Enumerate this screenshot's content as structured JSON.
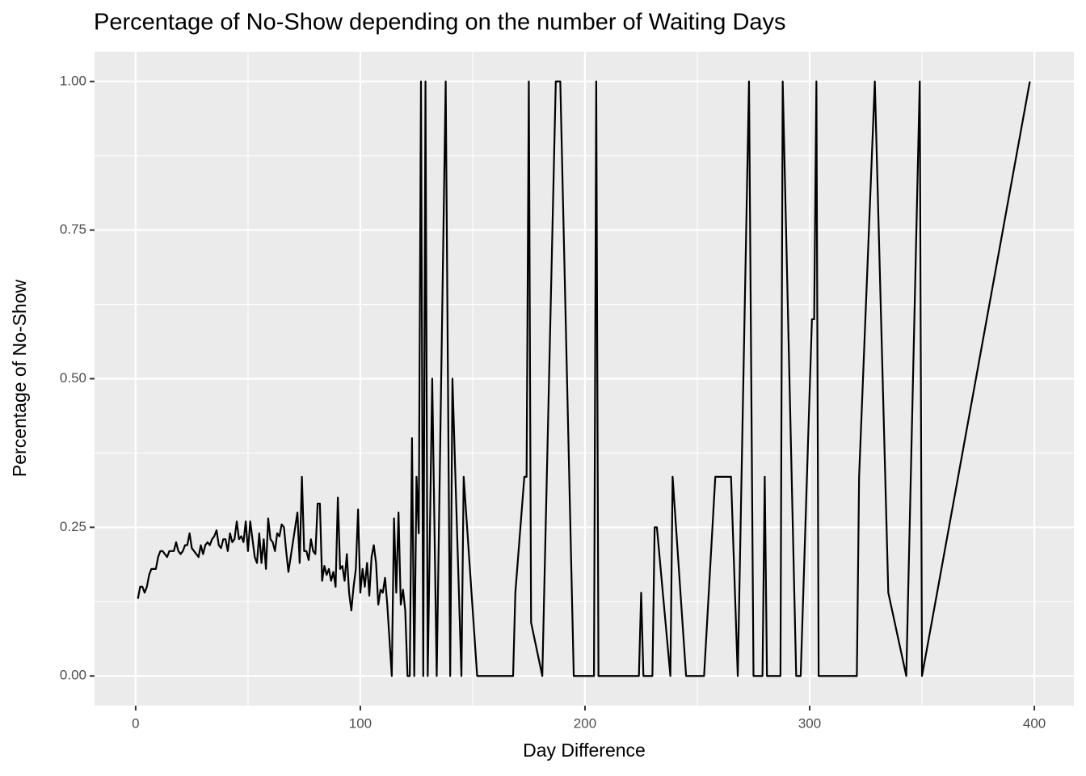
{
  "chart_data": {
    "type": "line",
    "title": "Percentage of No-Show depending on the number of Waiting Days",
    "x_label": "Day Difference",
    "y_label": "Percentage of No-Show",
    "x": [
      1,
      2,
      3,
      4,
      5,
      6,
      7,
      8,
      9,
      10,
      11,
      12,
      13,
      14,
      15,
      16,
      17,
      18,
      19,
      20,
      21,
      22,
      23,
      24,
      25,
      26,
      27,
      28,
      29,
      30,
      31,
      32,
      33,
      34,
      35,
      36,
      37,
      38,
      39,
      40,
      41,
      42,
      43,
      44,
      45,
      46,
      47,
      48,
      49,
      50,
      51,
      52,
      53,
      54,
      55,
      56,
      57,
      58,
      59,
      60,
      61,
      62,
      63,
      64,
      65,
      66,
      67,
      68,
      72,
      73,
      74,
      75,
      76,
      77,
      78,
      79,
      80,
      81,
      82,
      83,
      84,
      85,
      86,
      87,
      88,
      89,
      90,
      91,
      92,
      93,
      94,
      95,
      96,
      97,
      98,
      99,
      100,
      101,
      102,
      103,
      104,
      105,
      106,
      107,
      108,
      109,
      110,
      111,
      112,
      114,
      115,
      116,
      117,
      118,
      119,
      120,
      121,
      122,
      123,
      124,
      125,
      126,
      127,
      128,
      129,
      130,
      132,
      134,
      138,
      140,
      141,
      145,
      146,
      152,
      168,
      169,
      173,
      174,
      175,
      176,
      181,
      187,
      189,
      195,
      204,
      205,
      206,
      224,
      225,
      226,
      230,
      231,
      232,
      238,
      239,
      245,
      253,
      258,
      265,
      268,
      273,
      275,
      279,
      280,
      281,
      287,
      288,
      294,
      296,
      301,
      302,
      303,
      304,
      321,
      322,
      329,
      335,
      343,
      349,
      350,
      398
    ],
    "values": [
      0.13,
      0.15,
      0.15,
      0.14,
      0.15,
      0.17,
      0.18,
      0.18,
      0.18,
      0.2,
      0.21,
      0.21,
      0.205,
      0.2,
      0.21,
      0.21,
      0.21,
      0.225,
      0.21,
      0.205,
      0.21,
      0.22,
      0.22,
      0.24,
      0.215,
      0.21,
      0.205,
      0.2,
      0.22,
      0.205,
      0.22,
      0.225,
      0.22,
      0.23,
      0.235,
      0.245,
      0.22,
      0.215,
      0.23,
      0.23,
      0.21,
      0.24,
      0.225,
      0.23,
      0.26,
      0.23,
      0.235,
      0.225,
      0.26,
      0.21,
      0.26,
      0.23,
      0.2,
      0.19,
      0.24,
      0.19,
      0.23,
      0.18,
      0.265,
      0.23,
      0.225,
      0.21,
      0.24,
      0.235,
      0.255,
      0.25,
      0.21,
      0.175,
      0.275,
      0.19,
      0.335,
      0.21,
      0.21,
      0.195,
      0.23,
      0.21,
      0.205,
      0.29,
      0.29,
      0.16,
      0.185,
      0.17,
      0.18,
      0.16,
      0.175,
      0.15,
      0.3,
      0.18,
      0.185,
      0.16,
      0.205,
      0.14,
      0.11,
      0.15,
      0.18,
      0.28,
      0.14,
      0.18,
      0.15,
      0.19,
      0.135,
      0.2,
      0.22,
      0.19,
      0.12,
      0.145,
      0.14,
      0.165,
      0.12,
      0,
      0.265,
      0.14,
      0.275,
      0.12,
      0.145,
      0.11,
      0,
      0,
      0.4,
      0,
      0.335,
      0.24,
      1,
      0,
      1,
      0,
      0.5,
      0,
      1,
      0,
      0.5,
      0,
      0.335,
      0,
      0,
      0.14,
      0.335,
      0.335,
      1,
      0.09,
      0,
      1,
      1,
      0,
      0,
      1,
      0,
      0,
      0.14,
      0,
      0,
      0.25,
      0.25,
      0,
      0.335,
      0,
      0,
      0.335,
      0.335,
      0,
      1,
      0,
      0,
      0.335,
      0,
      0,
      1,
      0,
      0,
      0.6,
      0.6,
      1,
      0,
      0,
      0.335,
      1,
      0.14,
      0,
      1,
      0,
      1
    ],
    "color": "#000000",
    "xlim": [
      -18.3,
      417.6
    ],
    "ylim": [
      -0.05,
      1.05
    ],
    "xticks": [
      0,
      100,
      200,
      300,
      400
    ],
    "yticks": [
      {
        "value": 0,
        "label": "0.00"
      },
      {
        "value": 0.25,
        "label": "0.25"
      },
      {
        "value": 0.5,
        "label": "0.50"
      },
      {
        "value": 0.75,
        "label": "0.75"
      },
      {
        "value": 1,
        "label": "1.00"
      }
    ],
    "grid": true,
    "minor_grid": true
  }
}
